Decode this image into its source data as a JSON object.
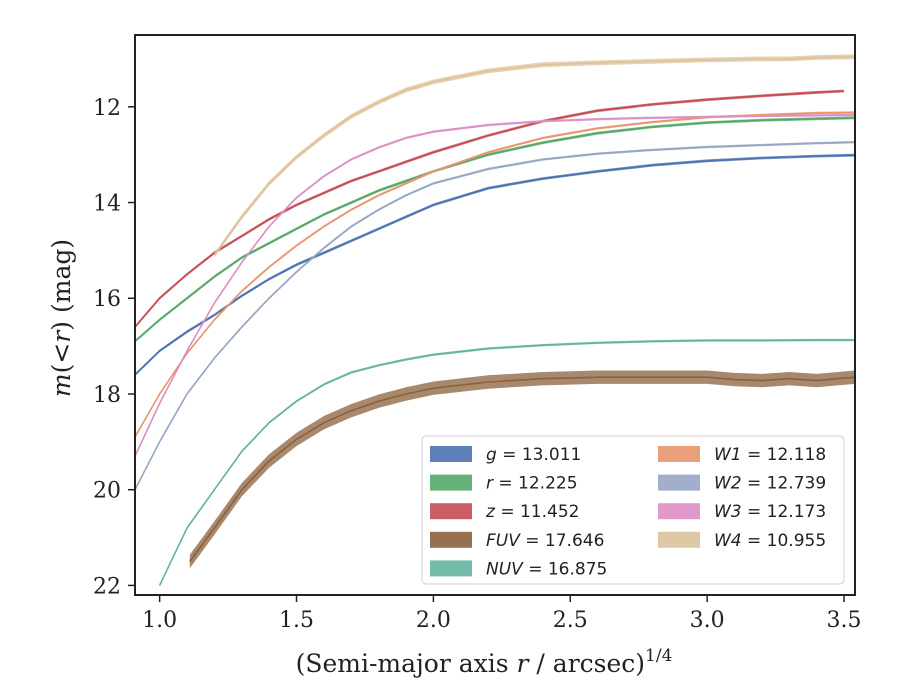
{
  "chart_data": {
    "type": "line",
    "title": "",
    "xlabel_main": "(Semi-major axis ",
    "xlabel_var": "r",
    "xlabel_rest": " / arcsec)",
    "xlabel_sup": "1/4",
    "ylabel_m": "m",
    "ylabel_open": "(<",
    "ylabel_r": "r",
    "ylabel_close": ") (mag)",
    "xlim": [
      0.91,
      3.54
    ],
    "ylim": [
      22.2,
      10.5
    ],
    "y_inverted": true,
    "grid": false,
    "legend_position": "lower right",
    "x_ticks": [
      1.0,
      1.5,
      2.0,
      2.5,
      3.0,
      3.5
    ],
    "x_tick_labels": [
      "1.0",
      "1.5",
      "2.0",
      "2.5",
      "3.0",
      "3.5"
    ],
    "y_ticks": [
      12,
      14,
      16,
      18,
      20,
      22
    ],
    "y_tick_labels": [
      "12",
      "14",
      "16",
      "18",
      "20",
      "22"
    ],
    "series": [
      {
        "band": "g",
        "value": "13.011",
        "color": "#4c72b0",
        "band_width": 0.06,
        "x": [
          0.91,
          1.0,
          1.1,
          1.2,
          1.3,
          1.4,
          1.5,
          1.6,
          1.7,
          1.8,
          1.9,
          2.0,
          2.2,
          2.4,
          2.6,
          2.8,
          3.0,
          3.2,
          3.4,
          3.54
        ],
        "y": [
          17.6,
          17.1,
          16.7,
          16.35,
          15.95,
          15.6,
          15.3,
          15.05,
          14.8,
          14.55,
          14.3,
          14.05,
          13.7,
          13.5,
          13.35,
          13.22,
          13.13,
          13.07,
          13.03,
          13.01
        ]
      },
      {
        "band": "r",
        "value": "12.225",
        "color": "#55a868",
        "band_width": 0.06,
        "x": [
          0.91,
          1.0,
          1.1,
          1.2,
          1.3,
          1.4,
          1.5,
          1.6,
          1.7,
          1.8,
          1.9,
          2.0,
          2.2,
          2.4,
          2.6,
          2.8,
          3.0,
          3.2,
          3.4,
          3.54
        ],
        "y": [
          16.9,
          16.45,
          16.0,
          15.55,
          15.15,
          14.85,
          14.55,
          14.25,
          14.0,
          13.75,
          13.55,
          13.35,
          13.0,
          12.75,
          12.55,
          12.42,
          12.33,
          12.28,
          12.25,
          12.23
        ]
      },
      {
        "band": "z",
        "value": "11.452",
        "color": "#c44e52",
        "band_width": 0.06,
        "x": [
          0.91,
          1.0,
          1.1,
          1.2,
          1.3,
          1.4,
          1.5,
          1.6,
          1.7,
          1.8,
          1.9,
          2.0,
          2.2,
          2.4,
          2.6,
          2.8,
          3.0,
          3.2,
          3.4,
          3.5
        ],
        "y": [
          16.6,
          16.0,
          15.5,
          15.05,
          14.7,
          14.35,
          14.05,
          13.8,
          13.55,
          13.35,
          13.15,
          12.95,
          12.6,
          12.3,
          12.08,
          11.95,
          11.85,
          11.77,
          11.7,
          11.67
        ]
      },
      {
        "band": "FUV",
        "value": "17.646",
        "color": "#8c613c",
        "band_width": 0.28,
        "x": [
          1.11,
          1.2,
          1.3,
          1.4,
          1.5,
          1.6,
          1.7,
          1.8,
          1.9,
          2.0,
          2.2,
          2.4,
          2.6,
          2.8,
          3.0,
          3.1,
          3.2,
          3.3,
          3.4,
          3.54
        ],
        "y": [
          21.5,
          20.8,
          20.0,
          19.4,
          18.95,
          18.6,
          18.35,
          18.15,
          18.0,
          17.88,
          17.75,
          17.68,
          17.65,
          17.65,
          17.65,
          17.7,
          17.72,
          17.68,
          17.72,
          17.65
        ]
      },
      {
        "band": "NUV",
        "value": "16.875",
        "color": "#64b5a0",
        "band_width": 0.05,
        "x": [
          1.0,
          1.1,
          1.2,
          1.3,
          1.4,
          1.5,
          1.6,
          1.7,
          1.8,
          1.9,
          2.0,
          2.2,
          2.4,
          2.6,
          2.8,
          3.0,
          3.2,
          3.4,
          3.54
        ],
        "y": [
          22.0,
          20.8,
          20.0,
          19.2,
          18.6,
          18.15,
          17.8,
          17.55,
          17.4,
          17.28,
          17.18,
          17.05,
          16.98,
          16.93,
          16.9,
          16.88,
          16.88,
          16.875,
          16.875
        ]
      },
      {
        "band": "W1",
        "value": "12.118",
        "color": "#e8956d",
        "band_width": 0.05,
        "x": [
          0.91,
          1.0,
          1.1,
          1.2,
          1.3,
          1.4,
          1.5,
          1.6,
          1.7,
          1.8,
          1.9,
          2.0,
          2.2,
          2.4,
          2.6,
          2.8,
          3.0,
          3.2,
          3.4,
          3.54
        ],
        "y": [
          18.9,
          18.0,
          17.15,
          16.45,
          15.85,
          15.35,
          14.9,
          14.5,
          14.15,
          13.85,
          13.6,
          13.35,
          12.95,
          12.65,
          12.45,
          12.32,
          12.22,
          12.17,
          12.13,
          12.12
        ]
      },
      {
        "band": "W2",
        "value": "12.739",
        "color": "#97a6c4",
        "band_width": 0.05,
        "x": [
          0.91,
          1.0,
          1.1,
          1.2,
          1.3,
          1.4,
          1.5,
          1.6,
          1.7,
          1.8,
          1.9,
          2.0,
          2.2,
          2.4,
          2.6,
          2.8,
          3.0,
          3.2,
          3.4,
          3.54
        ],
        "y": [
          20.0,
          19.0,
          18.0,
          17.25,
          16.6,
          16.0,
          15.45,
          14.95,
          14.5,
          14.15,
          13.85,
          13.6,
          13.3,
          13.1,
          12.98,
          12.9,
          12.84,
          12.8,
          12.76,
          12.74
        ]
      },
      {
        "band": "W3",
        "value": "12.173",
        "color": "#dd8fc4",
        "band_width": 0.05,
        "x": [
          0.91,
          1.0,
          1.1,
          1.2,
          1.3,
          1.4,
          1.5,
          1.6,
          1.7,
          1.8,
          1.9,
          2.0,
          2.2,
          2.4,
          2.6,
          2.8,
          3.0,
          3.2,
          3.4,
          3.54
        ],
        "y": [
          19.3,
          18.2,
          17.1,
          16.1,
          15.25,
          14.5,
          13.9,
          13.45,
          13.1,
          12.85,
          12.65,
          12.52,
          12.38,
          12.3,
          12.26,
          12.23,
          12.21,
          12.19,
          12.18,
          12.17
        ]
      },
      {
        "band": "W4",
        "value": "10.955",
        "color": "#dcc39a",
        "band_width": 0.1,
        "x": [
          1.2,
          1.3,
          1.4,
          1.5,
          1.6,
          1.7,
          1.8,
          1.9,
          2.0,
          2.2,
          2.4,
          2.6,
          2.8,
          3.0,
          3.2,
          3.3,
          3.4,
          3.54
        ],
        "y": [
          15.1,
          14.3,
          13.6,
          13.05,
          12.6,
          12.2,
          11.9,
          11.65,
          11.48,
          11.25,
          11.12,
          11.08,
          11.05,
          11.02,
          11.0,
          11.0,
          10.97,
          10.955
        ]
      }
    ],
    "legend_columns": [
      [
        "g",
        "r",
        "z",
        "FUV",
        "NUV"
      ],
      [
        "W1",
        "W2",
        "W3",
        "W4"
      ]
    ]
  }
}
